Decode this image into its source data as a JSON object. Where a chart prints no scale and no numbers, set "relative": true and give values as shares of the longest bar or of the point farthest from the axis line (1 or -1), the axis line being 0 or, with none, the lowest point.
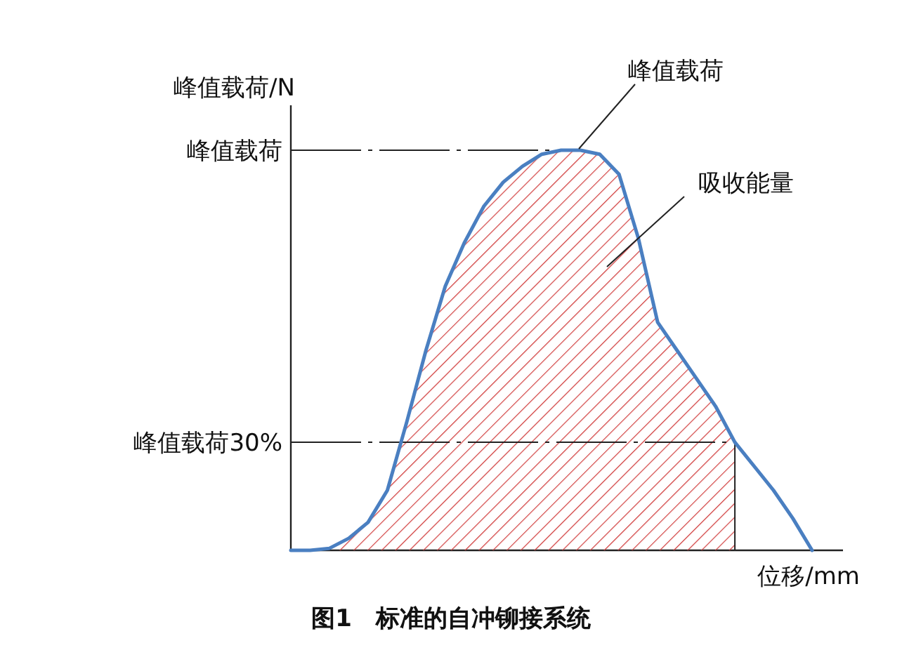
{
  "chart_data": {
    "type": "line",
    "title": "图1　标准的自冲铆接系统",
    "xlabel": "位移/mm",
    "ylabel": "峰值载荷/N",
    "relative": true,
    "categories": [
      null,
      null,
      null,
      null,
      null,
      null,
      null,
      null,
      null,
      null,
      null,
      null,
      null,
      null,
      null,
      null,
      null,
      null,
      null,
      null,
      null,
      null,
      null,
      null,
      null,
      null,
      null,
      null
    ],
    "series": [
      {
        "type": "area",
        "color": "#d03a3a",
        "values": [
          0,
          0,
          0.005,
          0.03,
          0.07,
          0.15,
          0.32,
          0.5,
          0.66,
          0.77,
          0.86,
          0.92,
          0.96,
          0.99,
          1,
          1,
          0.99,
          0.94,
          0.78,
          0.57,
          0.5,
          0.43,
          0.36,
          0.27,
          null,
          null,
          null,
          null
        ]
      },
      {
        "type": "line",
        "color": "#4a7fc1",
        "values": [
          0,
          0,
          0.005,
          0.03,
          0.07,
          0.15,
          0.32,
          0.5,
          0.66,
          0.77,
          0.86,
          0.92,
          0.96,
          0.99,
          1,
          1,
          0.99,
          0.94,
          0.78,
          0.57,
          0.5,
          0.43,
          0.36,
          0.27,
          0.21,
          0.15,
          0.08,
          0
        ]
      }
    ],
    "ref_lines": [
      {
        "axis": "y",
        "value": 1,
        "label": "峰值载荷",
        "line_style": "dashed"
      },
      {
        "axis": "y",
        "value": 0.27,
        "label": "峰值载荷30%",
        "line_style": "dashed"
      }
    ],
    "annotations": [
      "峰值载荷",
      "吸收能量"
    ]
  }
}
